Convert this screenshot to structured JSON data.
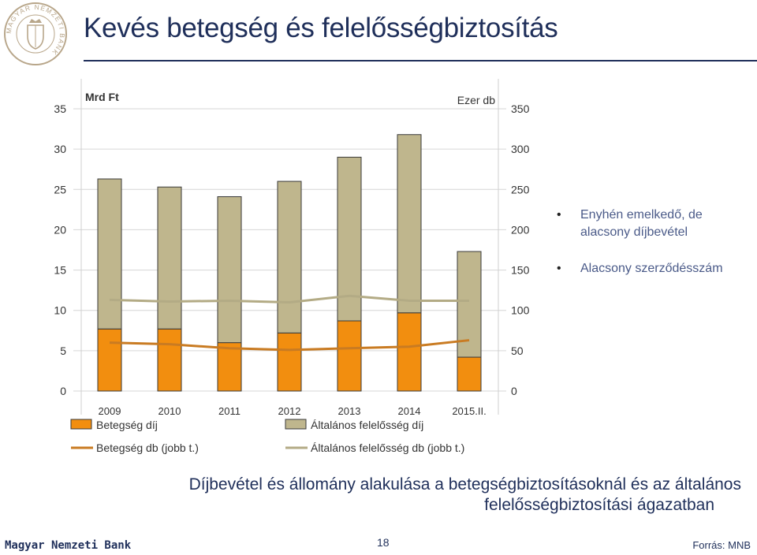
{
  "header": {
    "title": "Kevés betegség és felelősségbiztosítás",
    "logo_text": "MAGYAR NEMZETI BANK"
  },
  "chart_data": {
    "type": "bar",
    "categories": [
      "2009",
      "2010",
      "2011",
      "2012",
      "2013",
      "2014",
      "2015.II."
    ],
    "left_axis_unit": "Mrd Ft",
    "right_axis_unit": "Ezer db",
    "left_axis": {
      "min": 0,
      "max": 35,
      "ticks": [
        "0",
        "5",
        "10",
        "15",
        "20",
        "25",
        "30",
        "35"
      ]
    },
    "right_axis": {
      "min": 0,
      "max": 350,
      "ticks": [
        "0",
        "50",
        "100",
        "150",
        "200",
        "250",
        "300",
        "350"
      ]
    },
    "stacked": true,
    "bar_series": [
      {
        "name": "Betegség díj",
        "color": "#f28e0f",
        "values": [
          7.7,
          7.7,
          6.0,
          7.2,
          8.7,
          9.7,
          4.2
        ]
      },
      {
        "name": "Általános felelősség díj",
        "color": "#bfb68d",
        "values": [
          18.6,
          17.6,
          18.1,
          18.8,
          20.3,
          22.1,
          13.1
        ]
      }
    ],
    "line_series": [
      {
        "name": "Betegség db (jobb t.)",
        "color": "#c97b22",
        "axis": "right",
        "values": [
          60,
          58,
          53,
          51,
          53,
          55,
          63
        ]
      },
      {
        "name": "Általános felelősség db (jobb t.)",
        "color": "#b3ab85",
        "axis": "right",
        "values": [
          113,
          111,
          112,
          110,
          118,
          112,
          112
        ]
      }
    ],
    "grid": true,
    "legend_position": "bottom"
  },
  "bullets": [
    "Enyhén emelkedő, de alacsony díjbevétel",
    "Alacsony szerződésszám"
  ],
  "subtitle": {
    "line1": "Díjbevétel és állomány alakulása a betegségbiztosításoknál és az általános",
    "line2": "felelősségbiztosítási ágazatban"
  },
  "footer": {
    "bank_name": "Magyar Nemzeti Bank",
    "page_number": "18",
    "source": "Forrás: MNB"
  },
  "colors": {
    "title": "#1f2f5a",
    "bullet_text": "#4a5a88"
  }
}
